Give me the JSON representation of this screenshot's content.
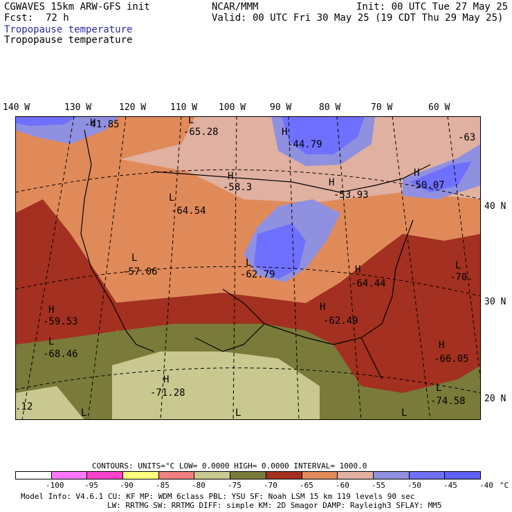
{
  "header": {
    "model": "CGWAVES 15km ARW-GFS init",
    "center": "NCAR/MMM",
    "init": "Init: 00 UTC Tue 27 May 25",
    "fcst_label": "Fcst:",
    "fcst_value": "72 h",
    "valid": "Valid: 00 UTC Fri 30 May 25 (19 CDT Thu 29 May 25)",
    "field_title_1": "Tropopause temperature",
    "field_title_2": "Tropopause temperature"
  },
  "axes": {
    "longitudes": [
      "140 W",
      "130 W",
      "120 W",
      "110 W",
      "100 W",
      "90 W",
      "80 W",
      "70 W",
      "60 W"
    ],
    "latitudes": [
      "40 N",
      "30 N",
      "20 N"
    ]
  },
  "map_labels": [
    {
      "text": "H"
    },
    {
      "text": "-41.85"
    },
    {
      "text": "L"
    },
    {
      "text": "-65.28"
    },
    {
      "text": "H"
    },
    {
      "text": "-44.79"
    },
    {
      "text": "-63"
    },
    {
      "text": "H"
    },
    {
      "text": "-58.3"
    },
    {
      "text": "H"
    },
    {
      "text": "-53.93"
    },
    {
      "text": "H"
    },
    {
      "text": "-50.07"
    },
    {
      "text": "L"
    },
    {
      "text": "-64.54"
    },
    {
      "text": "L"
    },
    {
      "text": "-57.06"
    },
    {
      "text": "L"
    },
    {
      "text": "-62.79"
    },
    {
      "text": "H"
    },
    {
      "text": "-64.44"
    },
    {
      "text": "L"
    },
    {
      "text": "-70."
    },
    {
      "text": "H"
    },
    {
      "text": "-59.53"
    },
    {
      "text": "H"
    },
    {
      "text": "-62.49"
    },
    {
      "text": "L"
    },
    {
      "text": "-68.46"
    },
    {
      "text": "H"
    },
    {
      "text": "-66.05"
    },
    {
      "text": "H"
    },
    {
      "text": "-71.28"
    },
    {
      "text": "L"
    },
    {
      "text": "-74.58"
    },
    {
      "text": "L"
    },
    {
      "text": ".12"
    },
    {
      "text": "L"
    },
    {
      "text": "L"
    }
  ],
  "contours": {
    "text": "CONTOURS:  UNITS=°C  LOW=  0.0000      HIGH=  0.0000      INTERVAL=   1000.0"
  },
  "legend": {
    "colors": [
      "#ffffff",
      "#ff77ff",
      "#ff44cc",
      "#ffff80",
      "#f08080",
      "#c8c890",
      "#7a7a3a",
      "#a33020",
      "#e08a5a",
      "#e0b0a0",
      "#9090e0",
      "#7070ff",
      "#6060ff"
    ],
    "ticks": [
      "-100",
      "-95",
      "-90",
      "-85",
      "-80",
      "-75",
      "-70",
      "-65",
      "-60",
      "-55",
      "-50",
      "-45",
      "-40",
      "°C"
    ]
  },
  "footer": {
    "line1": "Model Info: V4.6.1     CU: KF       MP: WDM 6class  PBL: YSU       SF: Noah LSM    15 km  119 levels  90 sec",
    "line2": "LW: RRTMG    SW: RRTMG   DIFF: simple KM: 2D Smagor DAMP: Rayleigh3  SFLAY: MM5"
  }
}
